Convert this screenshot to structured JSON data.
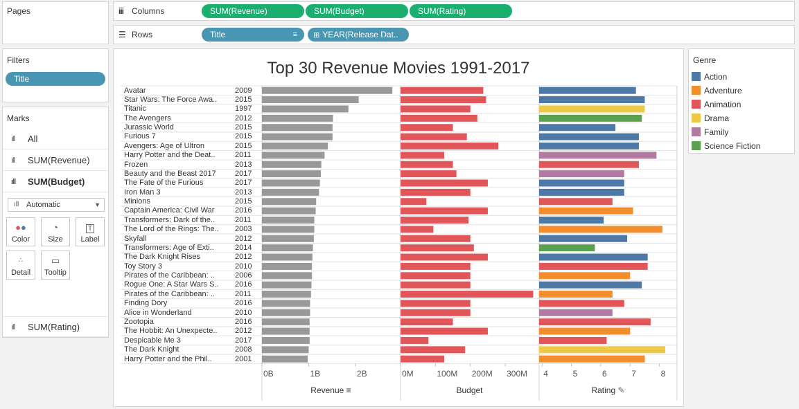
{
  "pages": {
    "title": "Pages"
  },
  "columns": {
    "label": "Columns",
    "pills": [
      "SUM(Revenue)",
      "SUM(Budget)",
      "SUM(Rating)"
    ]
  },
  "rows": {
    "label": "Rows",
    "pills": [
      "Title",
      "YEAR(Release Dat.."
    ]
  },
  "filters": {
    "title": "Filters",
    "pills": [
      "Title"
    ]
  },
  "marks": {
    "title": "Marks",
    "items": [
      "All",
      "SUM(Revenue)",
      "SUM(Budget)"
    ],
    "bottom_item": "SUM(Rating)",
    "mark_type": "Automatic",
    "buttons": [
      "Color",
      "Size",
      "Label",
      "Detail",
      "Tooltip"
    ]
  },
  "legend": {
    "title": "Genre",
    "items": [
      {
        "name": "Action",
        "color": "#4e79a7"
      },
      {
        "name": "Adventure",
        "color": "#f28e2b"
      },
      {
        "name": "Animation",
        "color": "#e15759"
      },
      {
        "name": "Drama",
        "color": "#edc948"
      },
      {
        "name": "Family",
        "color": "#b07aa1"
      },
      {
        "name": "Science Fiction",
        "color": "#59a14f"
      }
    ]
  },
  "chart_data": {
    "type": "bar",
    "title": "Top 30 Revenue Movies 1991-2017",
    "rows": [
      {
        "title": "Avatar",
        "year": "2009",
        "revenue": 2.79,
        "budget": 237,
        "rating": 7.2,
        "genre": "Action"
      },
      {
        "title": "Star Wars: The Force Awa..",
        "year": "2015",
        "revenue": 2.07,
        "budget": 245,
        "rating": 7.5,
        "genre": "Action"
      },
      {
        "title": "Titanic",
        "year": "1997",
        "revenue": 1.85,
        "budget": 200,
        "rating": 7.5,
        "genre": "Drama"
      },
      {
        "title": "The Avengers",
        "year": "2012",
        "revenue": 1.52,
        "budget": 220,
        "rating": 7.4,
        "genre": "Science Fiction"
      },
      {
        "title": "Jurassic World",
        "year": "2015",
        "revenue": 1.51,
        "budget": 150,
        "rating": 6.5,
        "genre": "Action"
      },
      {
        "title": "Furious 7",
        "year": "2015",
        "revenue": 1.51,
        "budget": 190,
        "rating": 7.3,
        "genre": "Action"
      },
      {
        "title": "Avengers: Age of Ultron",
        "year": "2015",
        "revenue": 1.41,
        "budget": 280,
        "rating": 7.3,
        "genre": "Action"
      },
      {
        "title": "Harry Potter and the Deat..",
        "year": "2011",
        "revenue": 1.34,
        "budget": 125,
        "rating": 7.9,
        "genre": "Family"
      },
      {
        "title": "Frozen",
        "year": "2013",
        "revenue": 1.27,
        "budget": 150,
        "rating": 7.3,
        "genre": "Animation"
      },
      {
        "title": "Beauty and the Beast 2017",
        "year": "2017",
        "revenue": 1.26,
        "budget": 160,
        "rating": 6.8,
        "genre": "Family"
      },
      {
        "title": "The Fate of the Furious",
        "year": "2017",
        "revenue": 1.24,
        "budget": 250,
        "rating": 6.8,
        "genre": "Action"
      },
      {
        "title": "Iron Man 3",
        "year": "2013",
        "revenue": 1.22,
        "budget": 200,
        "rating": 6.8,
        "genre": "Action"
      },
      {
        "title": "Minions",
        "year": "2015",
        "revenue": 1.16,
        "budget": 74,
        "rating": 6.4,
        "genre": "Animation"
      },
      {
        "title": "Captain America: Civil War",
        "year": "2016",
        "revenue": 1.15,
        "budget": 250,
        "rating": 7.1,
        "genre": "Adventure"
      },
      {
        "title": "Transformers: Dark of the..",
        "year": "2011",
        "revenue": 1.12,
        "budget": 195,
        "rating": 6.1,
        "genre": "Action"
      },
      {
        "title": "The Lord of the Rings: The..",
        "year": "2003",
        "revenue": 1.12,
        "budget": 94,
        "rating": 8.1,
        "genre": "Adventure"
      },
      {
        "title": "Skyfall",
        "year": "2012",
        "revenue": 1.11,
        "budget": 200,
        "rating": 6.9,
        "genre": "Action"
      },
      {
        "title": "Transformers: Age of Exti..",
        "year": "2014",
        "revenue": 1.09,
        "budget": 210,
        "rating": 5.8,
        "genre": "Science Fiction"
      },
      {
        "title": "The Dark Knight Rises",
        "year": "2012",
        "revenue": 1.08,
        "budget": 250,
        "rating": 7.6,
        "genre": "Action"
      },
      {
        "title": "Toy Story 3",
        "year": "2010",
        "revenue": 1.07,
        "budget": 200,
        "rating": 7.6,
        "genre": "Animation"
      },
      {
        "title": "Pirates of the Caribbean: ..",
        "year": "2006",
        "revenue": 1.07,
        "budget": 200,
        "rating": 7.0,
        "genre": "Adventure"
      },
      {
        "title": "Rogue One: A Star Wars S..",
        "year": "2016",
        "revenue": 1.06,
        "budget": 200,
        "rating": 7.4,
        "genre": "Action"
      },
      {
        "title": "Pirates of the Caribbean: ..",
        "year": "2011",
        "revenue": 1.05,
        "budget": 380,
        "rating": 6.4,
        "genre": "Adventure"
      },
      {
        "title": "Finding Dory",
        "year": "2016",
        "revenue": 1.03,
        "budget": 200,
        "rating": 6.8,
        "genre": "Animation"
      },
      {
        "title": "Alice in Wonderland",
        "year": "2010",
        "revenue": 1.03,
        "budget": 200,
        "rating": 6.4,
        "genre": "Family"
      },
      {
        "title": "Zootopia",
        "year": "2016",
        "revenue": 1.02,
        "budget": 150,
        "rating": 7.7,
        "genre": "Animation"
      },
      {
        "title": "The Hobbit: An Unexpecte..",
        "year": "2012",
        "revenue": 1.02,
        "budget": 250,
        "rating": 7.0,
        "genre": "Adventure"
      },
      {
        "title": "Despicable Me 3",
        "year": "2017",
        "revenue": 1.02,
        "budget": 80,
        "rating": 6.2,
        "genre": "Animation"
      },
      {
        "title": "The Dark Knight",
        "year": "2008",
        "revenue": 1.0,
        "budget": 185,
        "rating": 8.2,
        "genre": "Drama"
      },
      {
        "title": "Harry Potter and the Phil..",
        "year": "2001",
        "revenue": 0.98,
        "budget": 125,
        "rating": 7.5,
        "genre": "Adventure"
      }
    ],
    "revenue_axis": {
      "title": "Revenue",
      "ticks": [
        "0B",
        "1B",
        "2B"
      ],
      "tick_values": [
        0,
        1,
        2
      ],
      "range": [
        0,
        2.95
      ]
    },
    "budget_axis": {
      "title": "Budget",
      "ticks": [
        "0M",
        "100M",
        "200M",
        "300M"
      ],
      "tick_values": [
        0,
        100,
        200,
        300
      ],
      "range": [
        0,
        395
      ]
    },
    "rating_axis": {
      "title": "Rating",
      "ticks": [
        "4",
        "5",
        "6",
        "7",
        "8"
      ],
      "tick_values": [
        4,
        5,
        6,
        7,
        8
      ],
      "range": [
        3.9,
        8.6
      ]
    },
    "bar_colors": {
      "revenue": "#999999",
      "budget": "#e15759"
    }
  }
}
